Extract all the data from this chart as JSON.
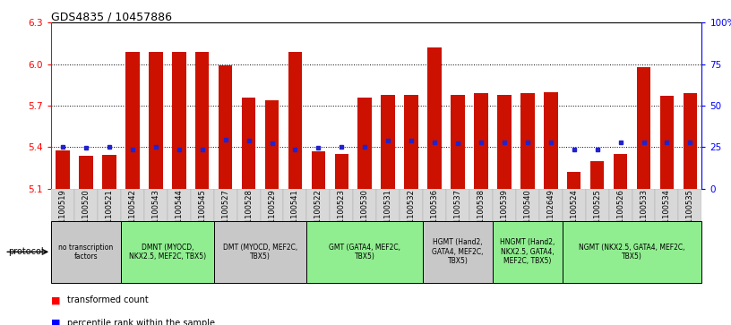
{
  "title": "GDS4835 / 10457886",
  "samples": [
    "GSM1100519",
    "GSM1100520",
    "GSM1100521",
    "GSM1100542",
    "GSM1100543",
    "GSM1100544",
    "GSM1100545",
    "GSM1100527",
    "GSM1100528",
    "GSM1100529",
    "GSM1100541",
    "GSM1100522",
    "GSM1100523",
    "GSM1100530",
    "GSM1100531",
    "GSM1100532",
    "GSM1100536",
    "GSM1100537",
    "GSM1100538",
    "GSM1100539",
    "GSM1100540",
    "GSM1102649",
    "GSM1100524",
    "GSM1100525",
    "GSM1100526",
    "GSM1100533",
    "GSM1100534",
    "GSM1100535"
  ],
  "bar_heights": [
    5.375,
    5.34,
    5.345,
    6.09,
    6.09,
    6.09,
    6.09,
    5.99,
    5.76,
    5.74,
    6.09,
    5.37,
    5.35,
    5.76,
    5.78,
    5.78,
    6.12,
    5.78,
    5.79,
    5.78,
    5.79,
    5.8,
    5.22,
    5.3,
    5.35,
    5.98,
    5.77,
    5.79
  ],
  "blue_dot_y": [
    5.4,
    5.395,
    5.4,
    5.385,
    5.4,
    5.385,
    5.385,
    5.455,
    5.445,
    5.43,
    5.385,
    5.395,
    5.4,
    5.4,
    5.445,
    5.445,
    5.435,
    5.43,
    5.435,
    5.435,
    5.435,
    5.435,
    5.385,
    5.385,
    5.435,
    5.435,
    5.435,
    5.435
  ],
  "protocol_groups": [
    {
      "label": "no transcription\nfactors",
      "start": 0,
      "end": 3,
      "color": "#c8c8c8"
    },
    {
      "label": "DMNT (MYOCD,\nNKX2.5, MEF2C, TBX5)",
      "start": 3,
      "end": 7,
      "color": "#90ee90"
    },
    {
      "label": "DMT (MYOCD, MEF2C,\nTBX5)",
      "start": 7,
      "end": 11,
      "color": "#c8c8c8"
    },
    {
      "label": "GMT (GATA4, MEF2C,\nTBX5)",
      "start": 11,
      "end": 16,
      "color": "#90ee90"
    },
    {
      "label": "HGMT (Hand2,\nGATA4, MEF2C,\nTBX5)",
      "start": 16,
      "end": 19,
      "color": "#c8c8c8"
    },
    {
      "label": "HNGMT (Hand2,\nNKX2.5, GATA4,\nMEF2C, TBX5)",
      "start": 19,
      "end": 22,
      "color": "#90ee90"
    },
    {
      "label": "NGMT (NKX2.5, GATA4, MEF2C,\nTBX5)",
      "start": 22,
      "end": 28,
      "color": "#90ee90"
    }
  ],
  "ylim_left": [
    5.1,
    6.3
  ],
  "ylim_right": [
    0,
    100
  ],
  "yticks_left": [
    5.1,
    5.4,
    5.7,
    6.0,
    6.3
  ],
  "yticks_right": [
    0,
    25,
    50,
    75,
    100
  ],
  "bar_color": "#cc1100",
  "dot_color": "#2222cc",
  "background_color": "#ffffff"
}
